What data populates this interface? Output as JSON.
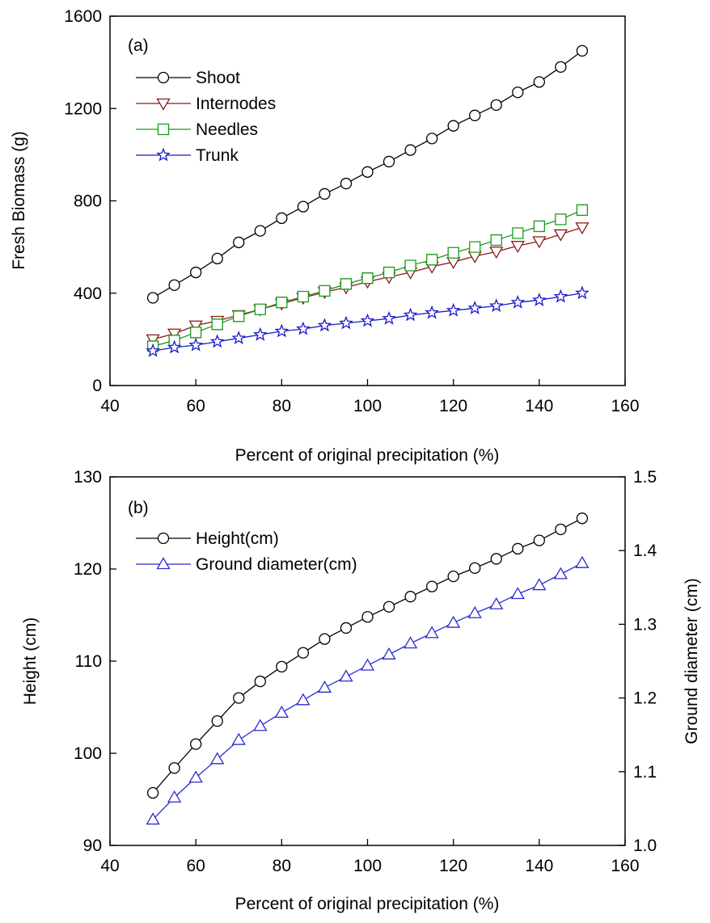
{
  "chart_data": [
    {
      "type": "line",
      "panel_label": "(a)",
      "xlabel": "Percent of original precipitation (%)",
      "ylabel": "Fresh Biomass (g)",
      "xlim": [
        40,
        160
      ],
      "ylim": [
        0,
        1600
      ],
      "x_ticks": [
        "40",
        "60",
        "80",
        "100",
        "120",
        "140",
        "160"
      ],
      "y_ticks": [
        "0",
        "400",
        "800",
        "1200",
        "1600"
      ],
      "grid": false,
      "legend_position": "top-left",
      "x": [
        50,
        55,
        60,
        65,
        70,
        75,
        80,
        85,
        90,
        95,
        100,
        105,
        110,
        115,
        120,
        125,
        130,
        135,
        140,
        145,
        150
      ],
      "series": [
        {
          "name": "Shoot",
          "marker": "circle",
          "color": "#000000",
          "values": [
            380,
            435,
            490,
            550,
            620,
            670,
            725,
            775,
            830,
            875,
            925,
            970,
            1020,
            1070,
            1125,
            1170,
            1215,
            1270,
            1315,
            1380,
            1450
          ]
        },
        {
          "name": "Internodes",
          "marker": "triangle-down",
          "color": "#8b1a1a",
          "values": [
            200,
            225,
            260,
            280,
            305,
            330,
            355,
            380,
            405,
            425,
            450,
            470,
            490,
            515,
            535,
            560,
            580,
            605,
            625,
            655,
            685
          ]
        },
        {
          "name": "Needles",
          "marker": "square",
          "color": "#1a9a1a",
          "values": [
            170,
            195,
            230,
            265,
            300,
            330,
            360,
            385,
            410,
            440,
            465,
            490,
            520,
            545,
            575,
            600,
            630,
            660,
            690,
            720,
            760
          ]
        },
        {
          "name": "Trunk",
          "marker": "star",
          "color": "#1a1acc",
          "values": [
            150,
            165,
            175,
            190,
            205,
            220,
            235,
            245,
            260,
            270,
            280,
            290,
            305,
            315,
            325,
            335,
            345,
            360,
            370,
            385,
            400
          ]
        }
      ]
    },
    {
      "type": "line",
      "panel_label": "(b)",
      "xlabel": "Percent of original precipitation (%)",
      "ylabel": "Height (cm)",
      "ylabel_right": "Ground diameter (cm)",
      "xlim": [
        40,
        160
      ],
      "ylim": [
        90,
        130
      ],
      "ylim_right": [
        1.0,
        1.5
      ],
      "x_ticks": [
        "40",
        "60",
        "80",
        "100",
        "120",
        "140",
        "160"
      ],
      "y_ticks": [
        "90",
        "100",
        "110",
        "120",
        "130"
      ],
      "y_ticks_right": [
        "1.0",
        "1.1",
        "1.2",
        "1.3",
        "1.4",
        "1.5"
      ],
      "grid": false,
      "legend_position": "top-left",
      "x": [
        50,
        55,
        60,
        65,
        70,
        75,
        80,
        85,
        90,
        95,
        100,
        105,
        110,
        115,
        120,
        125,
        130,
        135,
        140,
        145,
        150
      ],
      "series": [
        {
          "name": "Height(cm)",
          "axis": "left",
          "marker": "circle",
          "color": "#000000",
          "values": [
            95.7,
            98.4,
            101.0,
            103.5,
            106.0,
            107.8,
            109.4,
            110.9,
            112.4,
            113.6,
            114.8,
            115.9,
            117.0,
            118.1,
            119.2,
            120.1,
            121.1,
            122.2,
            123.1,
            124.3,
            125.5
          ]
        },
        {
          "name": "Ground diameter(cm)",
          "axis": "right",
          "marker": "triangle-up",
          "color": "#2a2ad0",
          "values": [
            1.035,
            1.065,
            1.092,
            1.117,
            1.143,
            1.162,
            1.18,
            1.197,
            1.214,
            1.229,
            1.244,
            1.259,
            1.274,
            1.288,
            1.302,
            1.315,
            1.327,
            1.341,
            1.353,
            1.368,
            1.383
          ]
        }
      ]
    }
  ]
}
